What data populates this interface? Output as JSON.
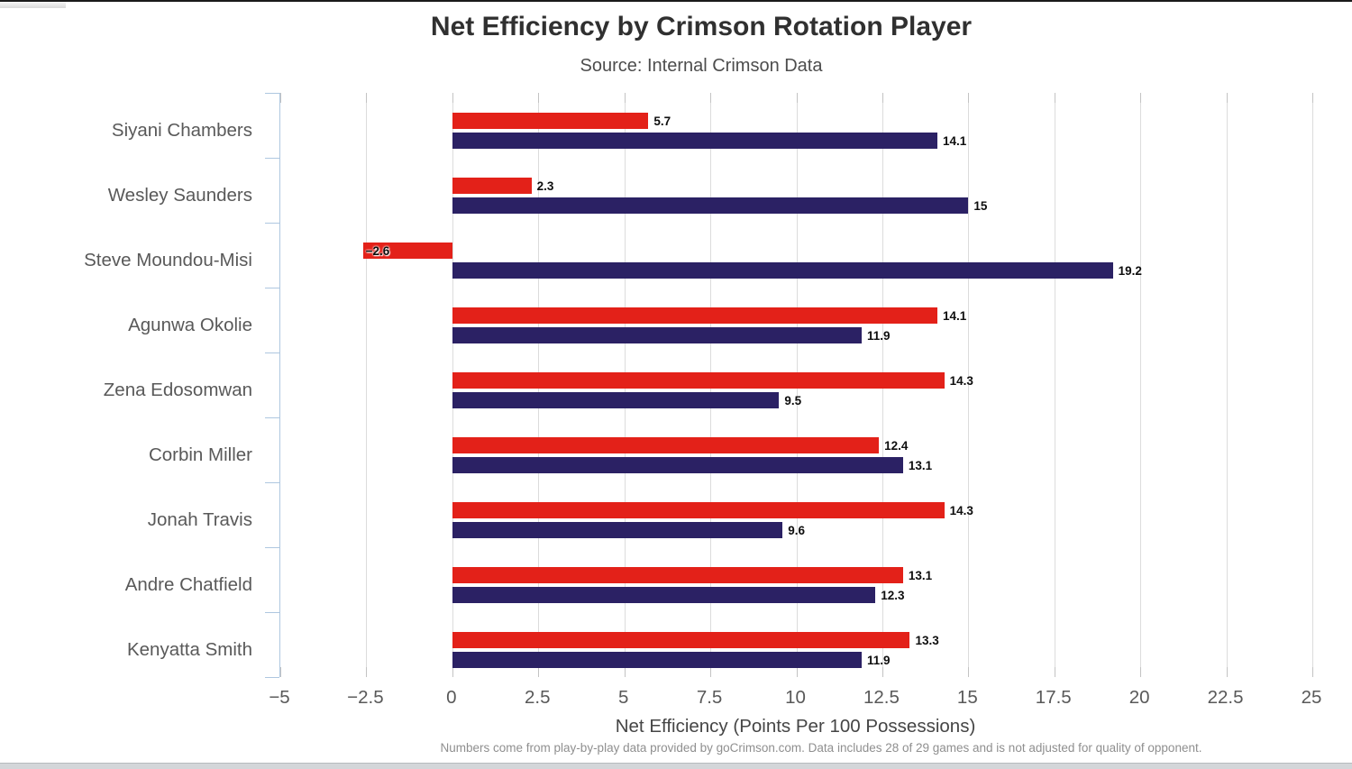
{
  "colors": {
    "series_red": "#e32119",
    "series_navy": "#2b2164",
    "gridline": "#dcdcdc",
    "axis_line": "#aec7e0",
    "title_text": "#303030",
    "subtitle_text": "#4d4d4d",
    "category_text": "#595959",
    "tick_text": "#595959",
    "value_label_text": "#0e0e0e",
    "footnote_text": "#8f8f8f",
    "top_line": "#1a1a1a",
    "bottom_bar": "#d3d6d9"
  },
  "chart_data": {
    "type": "bar",
    "orientation": "horizontal",
    "title": "Net Efficiency by Crimson Rotation Player",
    "subtitle": "Source: Internal Crimson Data",
    "xlabel": "Net Efficiency (Points Per 100 Possessions)",
    "footnote": "Numbers come from play-by-play data provided by goCrimson.com. Data includes 28 of 29 games and is not adjusted for quality of opponent.",
    "xlim": [
      -5,
      25
    ],
    "x_ticks": [
      -5,
      -2.5,
      0,
      2.5,
      5,
      7.5,
      10,
      12.5,
      15,
      17.5,
      20,
      22.5,
      25
    ],
    "x_tick_labels": [
      "−5",
      "−2.5",
      "0",
      "2.5",
      "5",
      "7.5",
      "10",
      "12.5",
      "15",
      "17.5",
      "20",
      "22.5",
      "25"
    ],
    "grid": "vertical",
    "legend": "none",
    "categories": [
      "Siyani Chambers",
      "Wesley Saunders",
      "Steve Moundou-Misi",
      "Agunwa Okolie",
      "Zena Edosomwan",
      "Corbin Miller",
      "Jonah Travis",
      "Andre Chatfield",
      "Kenyatta Smith"
    ],
    "series": [
      {
        "name": "red",
        "color": "#e32119",
        "values": [
          5.7,
          2.3,
          -2.6,
          14.1,
          14.3,
          12.4,
          14.3,
          13.1,
          13.3
        ],
        "labels": [
          "5.7",
          "2.3",
          "−2.6",
          "14.1",
          "14.3",
          "12.4",
          "14.3",
          "13.1",
          "13.3"
        ]
      },
      {
        "name": "navy",
        "color": "#2b2164",
        "values": [
          14.1,
          15,
          19.2,
          11.9,
          9.5,
          13.1,
          9.6,
          12.3,
          11.9
        ],
        "labels": [
          "14.1",
          "15",
          "19.2",
          "11.9",
          "9.5",
          "13.1",
          "9.6",
          "12.3",
          "11.9"
        ]
      }
    ]
  }
}
